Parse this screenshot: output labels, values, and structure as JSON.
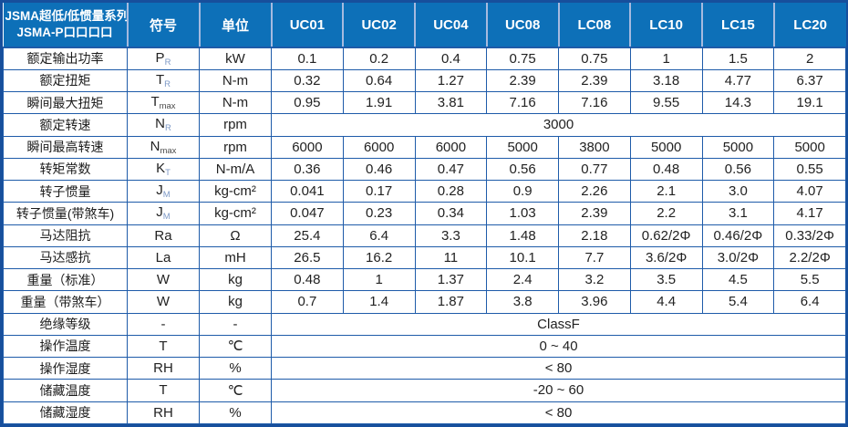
{
  "table": {
    "title_line1": "JSMA超低/低惯量系列",
    "title_line2": "JSMA-P口口口口",
    "header": {
      "symbol": "符号",
      "unit": "单位",
      "models": [
        "UC01",
        "UC02",
        "UC04",
        "UC08",
        "LC08",
        "LC10",
        "LC15",
        "LC20"
      ]
    },
    "rows": [
      {
        "label": "额定输出功率",
        "symbol_base": "P",
        "symbol_sub": "R",
        "sub_style": "blue",
        "unit": "kW",
        "values": [
          "0.1",
          "0.2",
          "0.4",
          "0.75",
          "0.75",
          "1",
          "1.5",
          "2"
        ]
      },
      {
        "label": "额定扭矩",
        "symbol_base": "T",
        "symbol_sub": "R",
        "sub_style": "blue",
        "unit": "N-m",
        "values": [
          "0.32",
          "0.64",
          "1.27",
          "2.39",
          "2.39",
          "3.18",
          "4.77",
          "6.37"
        ]
      },
      {
        "label": "瞬间最大扭矩",
        "symbol_base": "T",
        "symbol_sub": "max",
        "sub_style": "gray",
        "unit": "N-m",
        "values": [
          "0.95",
          "1.91",
          "3.81",
          "7.16",
          "7.16",
          "9.55",
          "14.3",
          "19.1"
        ]
      },
      {
        "label": "额定转速",
        "symbol_base": "N",
        "symbol_sub": "R",
        "sub_style": "blue",
        "unit": "rpm",
        "merged": "3000"
      },
      {
        "label": "瞬间最高转速",
        "symbol_base": "N",
        "symbol_sub": "max",
        "sub_style": "gray",
        "unit": "rpm",
        "values": [
          "6000",
          "6000",
          "6000",
          "5000",
          "3800",
          "5000",
          "5000",
          "5000"
        ]
      },
      {
        "label": "转矩常数",
        "symbol_base": "K",
        "symbol_sub": "T",
        "sub_style": "blue",
        "unit": "N-m/A",
        "values": [
          "0.36",
          "0.46",
          "0.47",
          "0.56",
          "0.77",
          "0.48",
          "0.56",
          "0.55"
        ]
      },
      {
        "label": "转子惯量",
        "symbol_base": "J",
        "symbol_sub": "M",
        "sub_style": "blue",
        "unit": "kg-cm²",
        "values": [
          "0.041",
          "0.17",
          "0.28",
          "0.9",
          "2.26",
          "2.1",
          "3.0",
          "4.07"
        ]
      },
      {
        "label": "转子惯量(带煞车)",
        "symbol_base": "J",
        "symbol_sub": "M",
        "sub_style": "blue",
        "unit": "kg-cm²",
        "values": [
          "0.047",
          "0.23",
          "0.34",
          "1.03",
          "2.39",
          "2.2",
          "3.1",
          "4.17"
        ]
      },
      {
        "label": "马达阻抗",
        "symbol_base": "Ra",
        "symbol_sub": "",
        "sub_style": "",
        "unit": "Ω",
        "values": [
          "25.4",
          "6.4",
          "3.3",
          "1.48",
          "2.18",
          "0.62/2Φ",
          "0.46/2Φ",
          "0.33/2Φ"
        ]
      },
      {
        "label": "马达感抗",
        "symbol_base": "La",
        "symbol_sub": "",
        "sub_style": "",
        "unit": "mH",
        "values": [
          "26.5",
          "16.2",
          "11",
          "10.1",
          "7.7",
          "3.6/2Φ",
          "3.0/2Φ",
          "2.2/2Φ"
        ]
      },
      {
        "label": "重量（标准）",
        "symbol_base": "W",
        "symbol_sub": "",
        "sub_style": "",
        "unit": "kg",
        "values": [
          "0.48",
          "1",
          "1.37",
          "2.4",
          "3.2",
          "3.5",
          "4.5",
          "5.5"
        ]
      },
      {
        "label": "重量（带煞车）",
        "symbol_base": "W",
        "symbol_sub": "",
        "sub_style": "",
        "unit": "kg",
        "values": [
          "0.7",
          "1.4",
          "1.87",
          "3.8",
          "3.96",
          "4.4",
          "5.4",
          "6.4"
        ]
      },
      {
        "label": "绝缘等级",
        "symbol_base": "-",
        "symbol_sub": "",
        "sub_style": "",
        "unit": "-",
        "merged": "ClassF"
      },
      {
        "label": "操作温度",
        "symbol_base": "T",
        "symbol_sub": "",
        "sub_style": "",
        "unit": "℃",
        "merged": "0 ~ 40"
      },
      {
        "label": "操作湿度",
        "symbol_base": "RH",
        "symbol_sub": "",
        "sub_style": "",
        "unit": "%",
        "merged": "< 80"
      },
      {
        "label": "储藏温度",
        "symbol_base": "T",
        "symbol_sub": "",
        "sub_style": "",
        "unit": "℃",
        "merged": "-20 ~ 60"
      },
      {
        "label": "储藏湿度",
        "symbol_base": "RH",
        "symbol_sub": "",
        "sub_style": "",
        "unit": "%",
        "merged": "< 80"
      }
    ]
  },
  "colors": {
    "header_bg": "#0d70b8",
    "header_text": "#ffffff",
    "grid_line": "#1e5ba9",
    "outer_border": "#174f9c",
    "header_separator": "#a6badf",
    "body_text": "#222222",
    "subscript_blue": "#7d99c6"
  }
}
